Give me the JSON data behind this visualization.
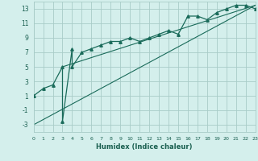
{
  "title": "",
  "xlabel": "Humidex (Indice chaleur)",
  "bg_color": "#d4efec",
  "line_color": "#1a6b5a",
  "grid_color": "#a8ccc8",
  "xlim": [
    0,
    23
  ],
  "ylim": [
    -4,
    14
  ],
  "xticks": [
    0,
    1,
    2,
    3,
    4,
    5,
    6,
    7,
    8,
    9,
    10,
    11,
    12,
    13,
    14,
    15,
    16,
    17,
    18,
    19,
    20,
    21,
    22,
    23
  ],
  "yticks": [
    -3,
    -1,
    1,
    3,
    5,
    7,
    9,
    11,
    13
  ],
  "main_x": [
    0,
    1,
    2,
    3,
    3,
    4,
    4,
    5,
    6,
    7,
    8,
    9,
    10,
    11,
    12,
    13,
    14,
    15,
    16,
    17,
    18,
    19,
    20,
    21,
    22,
    23
  ],
  "main_y": [
    1.0,
    2.0,
    2.5,
    5.0,
    -2.5,
    7.5,
    5.0,
    7.0,
    7.5,
    8.0,
    8.5,
    8.5,
    9.0,
    8.5,
    9.0,
    9.5,
    10.0,
    9.5,
    12.0,
    12.0,
    11.5,
    12.5,
    13.0,
    13.5,
    13.5,
    13.0
  ],
  "line1_x": [
    0,
    23
  ],
  "line1_y": [
    -3.0,
    13.5
  ],
  "line2_x": [
    3,
    23
  ],
  "line2_y": [
    5.0,
    13.5
  ]
}
